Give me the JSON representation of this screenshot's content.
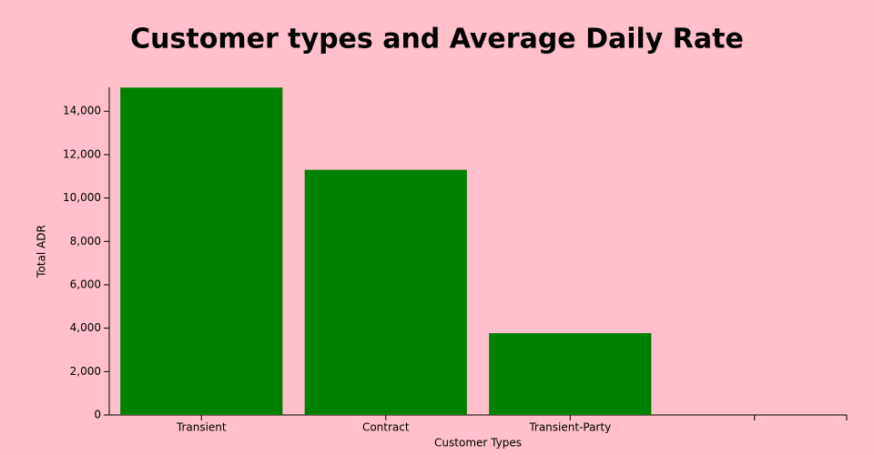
{
  "chart_data": {
    "type": "bar",
    "title": "Customer types and Average Daily Rate",
    "x_label": "Customer Types",
    "y_label": "Total ADR",
    "categories": [
      "Transient",
      "Contract",
      "Transient-Party",
      null
    ],
    "values": [
      15090,
      11300,
      3770,
      null
    ],
    "color": "#008000",
    "ylim": [
      0,
      15100
    ],
    "yticks": [
      0,
      {
        "value": 2000,
        "label": "2,000"
      },
      {
        "value": 4000,
        "label": "4,000"
      },
      {
        "value": 6000,
        "label": "6,000"
      },
      {
        "value": 8000,
        "label": "8,000"
      },
      {
        "value": 10000,
        "label": "10,000"
      },
      {
        "value": 12000,
        "label": "12,000"
      },
      {
        "value": 14000,
        "label": "14,000"
      }
    ],
    "grid": false
  }
}
